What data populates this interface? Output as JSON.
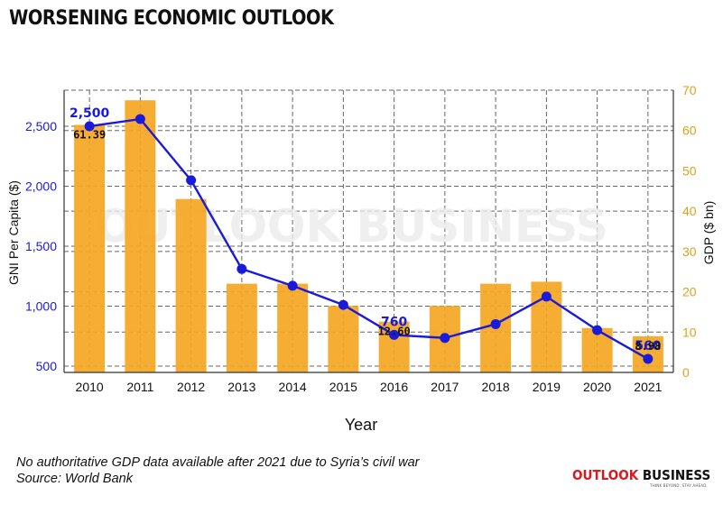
{
  "title": "WORSENING ECONOMIC OUTLOOK",
  "footnote": "No authoritative GDP data available after 2021 due to Syria’s civil war",
  "source": "Source: World Bank",
  "brand": {
    "name_part1": "OUTLOOK",
    "name_part2": " BUSINESS",
    "tagline": "THINK BEYOND. STAY AHEAD.",
    "watermark": "OUTLOOK BUSINESS"
  },
  "colors": {
    "bar": "#f5a623",
    "line": "#1a1adb",
    "left_axis": "#1a1adb",
    "right_axis": "#d9a31a",
    "brand_red": "#d81b23"
  },
  "chart_data": {
    "type": "bar+line",
    "xlabel": "Year",
    "categories": [
      "2010",
      "2011",
      "2012",
      "2013",
      "2014",
      "2015",
      "2016",
      "2017",
      "2018",
      "2019",
      "2020",
      "2021"
    ],
    "series": [
      {
        "name": "GDP ($ bn)",
        "type": "bar",
        "axis": "right",
        "values": [
          61.39,
          67.5,
          43.0,
          22.0,
          22.0,
          16.5,
          12.6,
          16.5,
          22.0,
          22.5,
          11.0,
          8.98
        ]
      },
      {
        "name": "GNI Per Capita ($)",
        "type": "line",
        "axis": "left",
        "values": [
          2500,
          2560,
          2050,
          1310,
          1170,
          1010,
          760,
          735,
          850,
          1080,
          800,
          560
        ]
      }
    ],
    "y_left": {
      "label": "GNI Per Capita ($)",
      "ticks": [
        {
          "value": 500,
          "label": "500"
        },
        {
          "value": 1000,
          "label": "1,000"
        },
        {
          "value": 1500,
          "label": "1,500"
        },
        {
          "value": 2000,
          "label": "2,000"
        },
        {
          "value": 2500,
          "label": "2,500"
        }
      ]
    },
    "y_right": {
      "label": "GDP ($ bn)",
      "ticks": [
        0,
        10,
        20,
        30,
        40,
        50,
        60,
        70
      ],
      "ylim": [
        0,
        70
      ]
    },
    "annotations": [
      {
        "series": "line",
        "index": 0,
        "text": "2,500",
        "position": "above"
      },
      {
        "series": "line",
        "index": 6,
        "text": "760",
        "position": "above"
      },
      {
        "series": "line",
        "index": 11,
        "text": "560",
        "position": "above"
      },
      {
        "series": "bar",
        "index": 0,
        "text": "61.39"
      },
      {
        "series": "bar",
        "index": 6,
        "text": "12.60"
      },
      {
        "series": "bar",
        "index": 11,
        "text": "8.98"
      }
    ],
    "grid": true
  }
}
